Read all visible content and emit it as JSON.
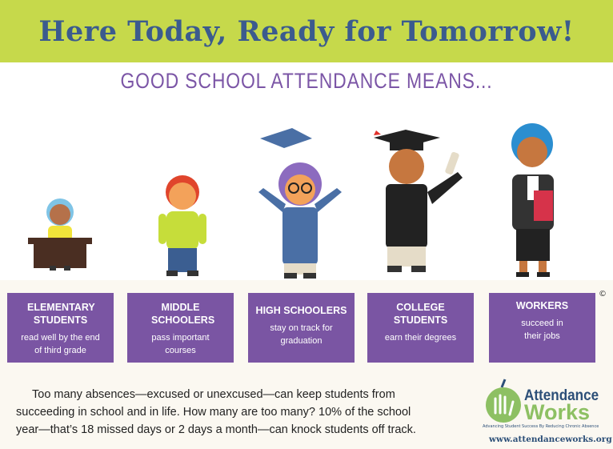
{
  "header": {
    "title": "Here Today, Ready for Tomorrow!"
  },
  "subtitle": "GOOD SCHOOL ATTENDANCE MEANS...",
  "boxes": [
    {
      "heading": "ELEMENTARY STUDENTS",
      "desc": "read well by the end of third grade"
    },
    {
      "heading": "MIDDLE SCHOOLERS",
      "desc": "pass important courses"
    },
    {
      "heading": "HIGH SCHOOLERS",
      "desc": "stay on track for graduation"
    },
    {
      "heading": "COLLEGE STUDENTS",
      "desc": "earn their degrees"
    },
    {
      "heading": "WORKERS",
      "desc": "succeed in their jobs"
    }
  ],
  "copyright": "©",
  "paragraph": {
    "lines": [
      "Too many absences—excused or unexcused—can keep students from",
      "succeeding in school and in life. How many are too many? 10% of the school",
      "year—that’s 18 missed days or 2 days a month—can knock students off track."
    ]
  },
  "logo": {
    "line1": "Attendance",
    "line2": "Works",
    "tagline": "Advancing Student Success By Reducing Chronic Absence"
  },
  "url": "www.attendanceworks.org",
  "colors": {
    "banner": "#c6d94b",
    "title": "#3b5b8e",
    "purple": "#7a55a3",
    "logo_green": "#8dc063",
    "logo_blue": "#2c4f78"
  }
}
